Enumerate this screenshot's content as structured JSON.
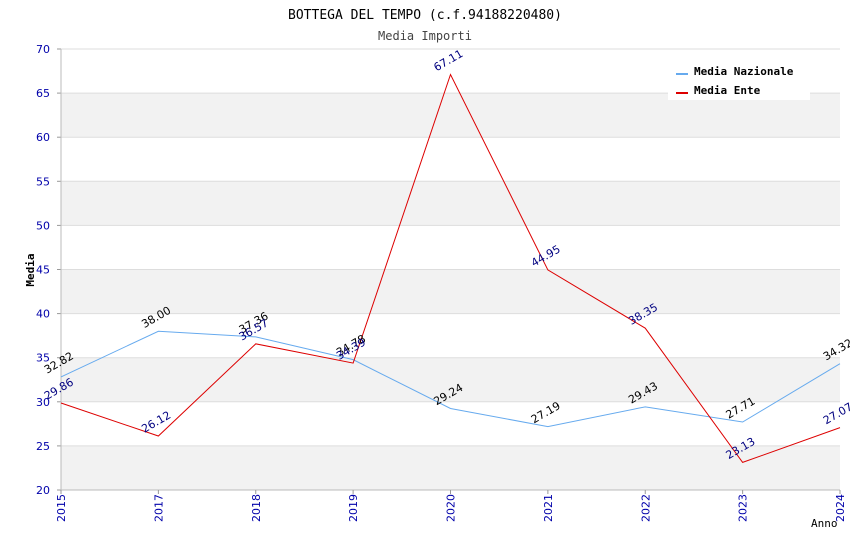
{
  "chart_data": {
    "type": "line",
    "title": "BOTTEGA DEL TEMPO (c.f.94188220480)",
    "subtitle": "Media Importi",
    "xlabel": "Anno",
    "ylabel": "Media",
    "categories": [
      "2015",
      "2017",
      "2018",
      "2019",
      "2020",
      "2021",
      "2022",
      "2023",
      "2024"
    ],
    "ylim": [
      20,
      70
    ],
    "yticks": [
      20,
      25,
      30,
      35,
      40,
      45,
      50,
      55,
      60,
      65,
      70
    ],
    "grid": true,
    "legend_position": "top-right",
    "series": [
      {
        "name": "Media Nazionale",
        "color": "#66aaee",
        "label_color": "#000000",
        "values": [
          32.82,
          38.0,
          37.36,
          34.78,
          29.24,
          27.19,
          29.43,
          27.71,
          34.32
        ],
        "labels": [
          "32.82",
          "38.00",
          "37.36",
          "34.78",
          "29.24",
          "27.19",
          "29.43",
          "27.71",
          "34.32"
        ]
      },
      {
        "name": "Media Ente",
        "color": "#dd0000",
        "label_color": "#000080",
        "values": [
          29.86,
          26.12,
          36.57,
          34.39,
          67.11,
          44.95,
          38.35,
          23.13,
          27.07
        ],
        "labels": [
          "29.86",
          "26.12",
          "36.57",
          "34.39",
          "67.11",
          "44.95",
          "38.35",
          "23.13",
          "27.07"
        ]
      }
    ],
    "axis_color": "#0000aa",
    "band_color": "#f2f2f2"
  }
}
